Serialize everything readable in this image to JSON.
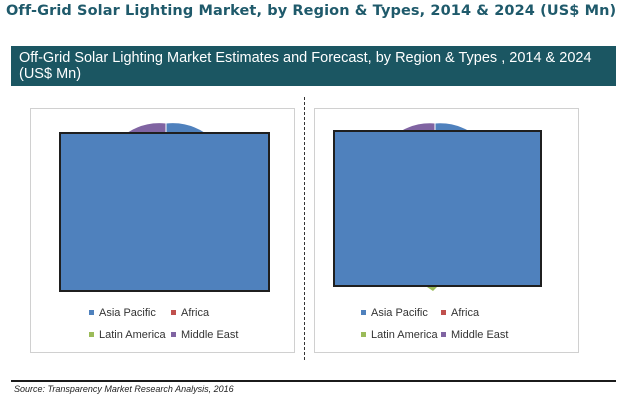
{
  "page": {
    "title": "Off-Grid Solar Lighting Market, by Region & Types, 2014 & 2024 (US$ Mn)",
    "banner": "Off-Grid Solar Lighting Market Estimates and Forecast, by Region & Types , 2014 & 2024 (US$ Mn)",
    "source": "Source: Transparency Market Research Analysis, 2016"
  },
  "colors": {
    "banner_bg": "#1b5662",
    "title_text": "#1f5a6b",
    "asia_pacific": "#4f81bd",
    "africa": "#c0504d",
    "latin_america": "#9bbb59",
    "middle_east": "#8064a2",
    "overlay_fill": "#4f81bd",
    "overlay_stroke": "#1f1f1f"
  },
  "chart_data": [
    {
      "type": "pie",
      "categories": [
        "Asia Pacific",
        "Africa",
        "Latin America",
        "Middle East"
      ],
      "values": [
        null,
        null,
        null,
        null
      ],
      "legend": "bottom",
      "note_visible": "slices largely obscured by a solid blue rectangle"
    },
    {
      "type": "pie",
      "categories": [
        "Asia Pacific",
        "Africa",
        "Latin America",
        "Middle East"
      ],
      "values": [
        null,
        null,
        null,
        null
      ],
      "legend": "bottom"
    }
  ]
}
